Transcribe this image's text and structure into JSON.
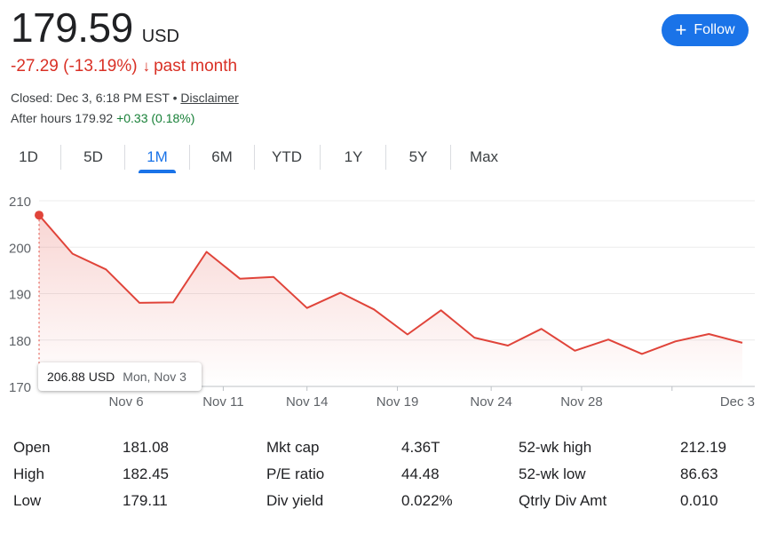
{
  "header": {
    "price": "179.59",
    "currency": "USD",
    "change": "-27.29 (-13.19%)",
    "change_arrow": "↓",
    "change_period": "past month",
    "closed_text": "Closed: Dec 3, 6:18 PM EST • ",
    "disclaimer": "Disclaimer",
    "after_hours_label": "After hours 179.92 ",
    "after_hours_change": "+0.33 (0.18%)",
    "follow_label": "Follow",
    "follow_icon": "plus-icon"
  },
  "tabs": [
    {
      "label": "1D"
    },
    {
      "label": "5D"
    },
    {
      "label": "1M",
      "active": true
    },
    {
      "label": "6M"
    },
    {
      "label": "YTD"
    },
    {
      "label": "1Y"
    },
    {
      "label": "5Y"
    },
    {
      "label": "Max"
    }
  ],
  "tooltip": {
    "price": "206.88 USD",
    "date": "Mon, Nov 3"
  },
  "colors": {
    "negative": "#d93025",
    "positive": "#188038",
    "accent": "#1a73e8",
    "line": "#e0443a"
  },
  "chart_data": {
    "type": "area",
    "title": "",
    "xlabel": "",
    "ylabel": "",
    "ylim": [
      170,
      210
    ],
    "yticks": [
      170,
      180,
      190,
      200,
      210
    ],
    "x_tick_labels": [
      "Nov 6",
      "Nov 11",
      "Nov 14",
      "Nov 19",
      "Nov 24",
      "Nov 28",
      "Dec 3"
    ],
    "x_tick_index": [
      2.6,
      5.5,
      8,
      10.7,
      13.5,
      16.2,
      18.9
    ],
    "series": [
      {
        "name": "Price",
        "values": [
          206.9,
          198.6,
          195.2,
          188.0,
          188.1,
          199.0,
          193.2,
          193.6,
          186.9,
          190.2,
          186.6,
          181.2,
          186.4,
          180.5,
          178.8,
          182.4,
          177.7,
          180.1,
          177.0,
          179.7,
          181.3,
          179.4
        ]
      }
    ],
    "grid": true
  },
  "stats": [
    [
      {
        "label": "Open",
        "value": "181.08"
      },
      {
        "label": "Mkt cap",
        "value": "4.36T"
      },
      {
        "label": "52-wk high",
        "value": "212.19"
      }
    ],
    [
      {
        "label": "High",
        "value": "182.45"
      },
      {
        "label": "P/E ratio",
        "value": "44.48"
      },
      {
        "label": "52-wk low",
        "value": "86.63"
      }
    ],
    [
      {
        "label": "Low",
        "value": "179.11"
      },
      {
        "label": "Div yield",
        "value": "0.022%"
      },
      {
        "label": "Qtrly Div Amt",
        "value": "0.010"
      }
    ]
  ]
}
